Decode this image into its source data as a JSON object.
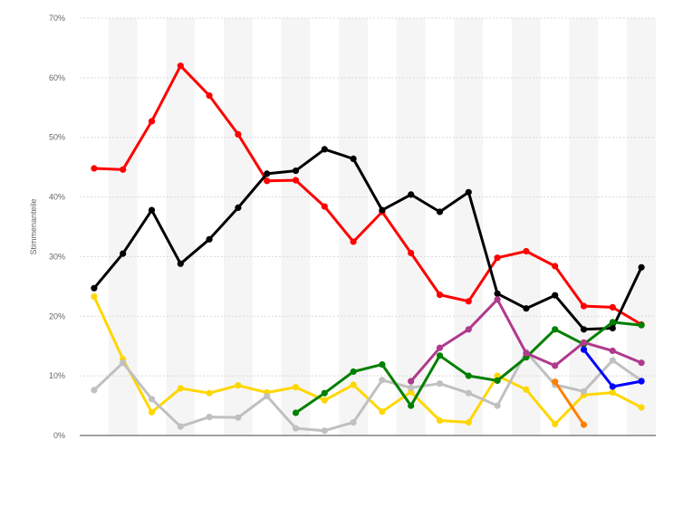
{
  "chart_data": {
    "type": "line",
    "ylabel": "Stimmenanteile",
    "ylim": [
      0,
      70
    ],
    "yticks": [
      0,
      10,
      20,
      30,
      40,
      50,
      60,
      70
    ],
    "ytick_labels": [
      "0%",
      "10%",
      "20%",
      "30%",
      "40%",
      "50%",
      "60%",
      "70%"
    ],
    "n_points": 20,
    "grid": "horizontal-dashed",
    "series": [
      {
        "color": "#ff0000",
        "values": [
          44.8,
          44.6,
          52.7,
          62.0,
          57.0,
          50.5,
          42.7,
          42.8,
          38.4,
          32.5,
          37.5,
          30.6,
          23.6,
          22.5,
          29.8,
          30.9,
          28.4,
          21.7,
          21.5,
          18.6
        ]
      },
      {
        "color": "#000000",
        "values": [
          24.7,
          30.5,
          37.8,
          28.8,
          32.9,
          38.2,
          43.9,
          44.4,
          48.0,
          46.4,
          37.8,
          40.4,
          37.5,
          40.8,
          23.8,
          21.3,
          23.5,
          17.8,
          18.0,
          28.2
        ]
      },
      {
        "color": "#ffd700",
        "values": [
          23.3,
          12.8,
          3.9,
          7.9,
          7.1,
          8.4,
          7.2,
          8.1,
          5.9,
          8.5,
          4.0,
          7.3,
          2.5,
          2.2,
          10.0,
          7.7,
          1.9,
          6.8,
          7.2,
          4.7
        ]
      },
      {
        "color": "#c0c0c0",
        "values": [
          7.6,
          12.2,
          6.1,
          1.5,
          3.1,
          3.0,
          6.6,
          1.2,
          0.8,
          2.2,
          9.3,
          8.0,
          8.7,
          7.1,
          5.0,
          14.0,
          8.5,
          7.4,
          12.6,
          9.2
        ]
      },
      {
        "color": "#008000",
        "values": [
          null,
          null,
          null,
          null,
          null,
          null,
          null,
          3.8,
          7.1,
          10.7,
          11.9,
          5.0,
          13.4,
          10.0,
          9.2,
          13.1,
          17.8,
          15.3,
          19.0,
          18.5
        ]
      },
      {
        "color": "#b03a8c",
        "values": [
          null,
          null,
          null,
          null,
          null,
          null,
          null,
          null,
          null,
          null,
          null,
          9.1,
          14.7,
          17.8,
          22.8,
          13.8,
          11.7,
          15.6,
          14.2,
          12.2
        ]
      },
      {
        "color": "#0000ff",
        "values": [
          null,
          null,
          null,
          null,
          null,
          null,
          null,
          null,
          null,
          null,
          null,
          null,
          null,
          null,
          null,
          null,
          null,
          14.4,
          8.2,
          9.1
        ]
      },
      {
        "color": "#ff8000",
        "values": [
          null,
          null,
          null,
          null,
          null,
          null,
          null,
          null,
          null,
          null,
          null,
          null,
          null,
          null,
          null,
          null,
          9.0,
          1.8,
          null,
          null
        ]
      }
    ]
  }
}
